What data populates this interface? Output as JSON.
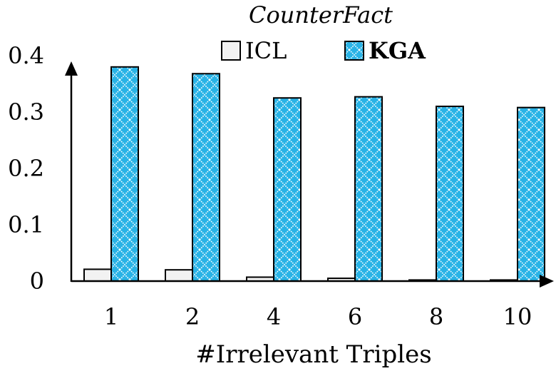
{
  "chart_data": {
    "type": "bar",
    "title": "CounterFact",
    "xlabel": "#Irrelevant Triples",
    "ylabel": "",
    "categories": [
      "1",
      "2",
      "4",
      "6",
      "8",
      "10"
    ],
    "ylim": [
      0,
      0.4
    ],
    "yticks": [
      "0",
      "0.1",
      "0.2",
      "0.3",
      "0.4"
    ],
    "grid": false,
    "legend_position": "top-center",
    "series": [
      {
        "name": "ICL",
        "values": [
          0.021,
          0.02,
          0.007,
          0.005,
          0.002,
          0.002
        ],
        "color": "#f2f2f2",
        "pattern": "none"
      },
      {
        "name": "KGA",
        "values": [
          0.38,
          0.368,
          0.325,
          0.327,
          0.31,
          0.308
        ],
        "color": "#29b3e6",
        "pattern": "crosshatch"
      }
    ]
  }
}
